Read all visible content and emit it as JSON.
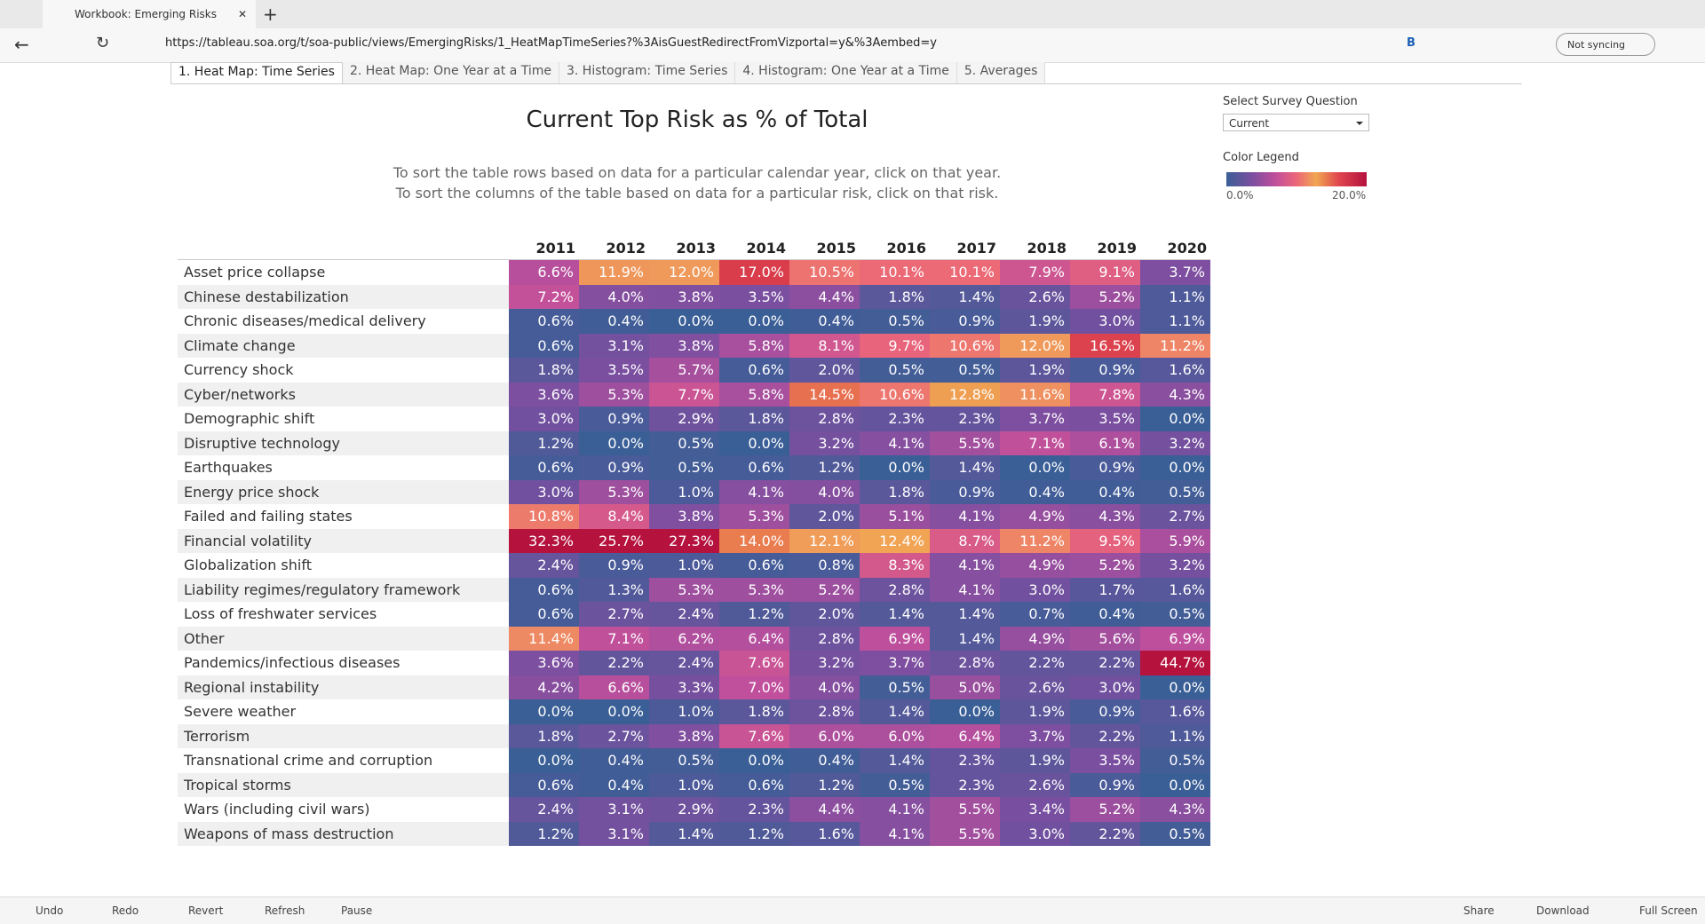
{
  "browser": {
    "tab_title": "Workbook: Emerging Risks",
    "url": "https://tableau.soa.org/t/soa-public/views/EmergingRisks/1_HeatMapTimeSeries?%3AisGuestRedirectFromVizportal=y&%3Aembed=y",
    "sync": "Not syncing",
    "profile_letter": "B"
  },
  "tabs": [
    "1. Heat Map: Time Series",
    "2. Heat Map: One Year at a Time",
    "3. Histogram: Time Series",
    "4. Histogram: One Year at a Time",
    "5. Averages"
  ],
  "dashboard": {
    "title": "Current Top Risk as % of Total",
    "instructions": [
      "To sort the table rows based on data for a particular calendar year, click on that year.",
      "To sort the columns of the table based on data for a particular risk, click on that risk."
    ]
  },
  "filter": {
    "label": "Select Survey Question",
    "value": "Current"
  },
  "legend": {
    "title": "Color Legend",
    "min": "0.0%",
    "max": "20.0%"
  },
  "table": {
    "columns": [
      "2011",
      "2012",
      "2013",
      "2014",
      "2015",
      "2016",
      "2017",
      "2018",
      "2019",
      "2020"
    ],
    "rows": [
      {
        "label": "Asset price collapse",
        "cells": [
          "6.6%",
          "11.9%",
          "12.0%",
          "17.0%",
          "10.5%",
          "10.1%",
          "10.1%",
          "7.9%",
          "9.1%",
          "3.7%"
        ]
      },
      {
        "label": "Chinese destabilization",
        "cells": [
          "7.2%",
          "4.0%",
          "3.8%",
          "3.5%",
          "4.4%",
          "1.8%",
          "1.4%",
          "2.6%",
          "5.2%",
          "1.1%"
        ]
      },
      {
        "label": "Chronic diseases/medical delivery",
        "cells": [
          "0.6%",
          "0.4%",
          "0.0%",
          "0.0%",
          "0.4%",
          "0.5%",
          "0.9%",
          "1.9%",
          "3.0%",
          "1.1%"
        ]
      },
      {
        "label": "Climate change",
        "cells": [
          "0.6%",
          "3.1%",
          "3.8%",
          "5.8%",
          "8.1%",
          "9.7%",
          "10.6%",
          "12.0%",
          "16.5%",
          "11.2%"
        ]
      },
      {
        "label": "Currency shock",
        "cells": [
          "1.8%",
          "3.5%",
          "5.7%",
          "0.6%",
          "2.0%",
          "0.5%",
          "0.5%",
          "1.9%",
          "0.9%",
          "1.6%"
        ]
      },
      {
        "label": "Cyber/networks",
        "cells": [
          "3.6%",
          "5.3%",
          "7.7%",
          "5.8%",
          "14.5%",
          "10.6%",
          "12.8%",
          "11.6%",
          "7.8%",
          "4.3%"
        ]
      },
      {
        "label": "Demographic shift",
        "cells": [
          "3.0%",
          "0.9%",
          "2.9%",
          "1.8%",
          "2.8%",
          "2.3%",
          "2.3%",
          "3.7%",
          "3.5%",
          "0.0%"
        ]
      },
      {
        "label": "Disruptive technology",
        "cells": [
          "1.2%",
          "0.0%",
          "0.5%",
          "0.0%",
          "3.2%",
          "4.1%",
          "5.5%",
          "7.1%",
          "6.1%",
          "3.2%"
        ]
      },
      {
        "label": "Earthquakes",
        "cells": [
          "0.6%",
          "0.9%",
          "0.5%",
          "0.6%",
          "1.2%",
          "0.0%",
          "1.4%",
          "0.0%",
          "0.9%",
          "0.0%"
        ]
      },
      {
        "label": "Energy price shock",
        "cells": [
          "3.0%",
          "5.3%",
          "1.0%",
          "4.1%",
          "4.0%",
          "1.8%",
          "0.9%",
          "0.4%",
          "0.4%",
          "0.5%"
        ]
      },
      {
        "label": "Failed and failing states",
        "cells": [
          "10.8%",
          "8.4%",
          "3.8%",
          "5.3%",
          "2.0%",
          "5.1%",
          "4.1%",
          "4.9%",
          "4.3%",
          "2.7%"
        ]
      },
      {
        "label": "Financial volatility",
        "cells": [
          "32.3%",
          "25.7%",
          "27.3%",
          "14.0%",
          "12.1%",
          "12.4%",
          "8.7%",
          "11.2%",
          "9.5%",
          "5.9%"
        ]
      },
      {
        "label": "Globalization shift",
        "cells": [
          "2.4%",
          "0.9%",
          "1.0%",
          "0.6%",
          "0.8%",
          "8.3%",
          "4.1%",
          "4.9%",
          "5.2%",
          "3.2%"
        ]
      },
      {
        "label": "Liability regimes/regulatory framework",
        "cells": [
          "0.6%",
          "1.3%",
          "5.3%",
          "5.3%",
          "5.2%",
          "2.8%",
          "4.1%",
          "3.0%",
          "1.7%",
          "1.6%"
        ]
      },
      {
        "label": "Loss of freshwater services",
        "cells": [
          "0.6%",
          "2.7%",
          "2.4%",
          "1.2%",
          "2.0%",
          "1.4%",
          "1.4%",
          "0.7%",
          "0.4%",
          "0.5%"
        ]
      },
      {
        "label": "Other",
        "cells": [
          "11.4%",
          "7.1%",
          "6.2%",
          "6.4%",
          "2.8%",
          "6.9%",
          "1.4%",
          "4.9%",
          "5.6%",
          "6.9%"
        ]
      },
      {
        "label": "Pandemics/infectious diseases",
        "cells": [
          "3.6%",
          "2.2%",
          "2.4%",
          "7.6%",
          "3.2%",
          "3.7%",
          "2.8%",
          "2.2%",
          "2.2%",
          "44.7%"
        ]
      },
      {
        "label": "Regional instability",
        "cells": [
          "4.2%",
          "6.6%",
          "3.3%",
          "7.0%",
          "4.0%",
          "0.5%",
          "5.0%",
          "2.6%",
          "3.0%",
          "0.0%"
        ]
      },
      {
        "label": "Severe weather",
        "cells": [
          "0.0%",
          "0.0%",
          "1.0%",
          "1.8%",
          "2.8%",
          "1.4%",
          "0.0%",
          "1.9%",
          "0.9%",
          "1.6%"
        ]
      },
      {
        "label": "Terrorism",
        "cells": [
          "1.8%",
          "2.7%",
          "3.8%",
          "7.6%",
          "6.0%",
          "6.0%",
          "6.4%",
          "3.7%",
          "2.2%",
          "1.1%"
        ]
      },
      {
        "label": "Transnational crime and corruption",
        "cells": [
          "0.0%",
          "0.4%",
          "0.5%",
          "0.0%",
          "0.4%",
          "1.4%",
          "2.3%",
          "1.9%",
          "3.5%",
          "0.5%"
        ]
      },
      {
        "label": "Tropical storms",
        "cells": [
          "0.6%",
          "0.4%",
          "1.0%",
          "0.6%",
          "1.2%",
          "0.5%",
          "2.3%",
          "2.6%",
          "0.9%",
          "0.0%"
        ]
      },
      {
        "label": "Wars (including civil wars)",
        "cells": [
          "2.4%",
          "3.1%",
          "2.9%",
          "2.3%",
          "4.4%",
          "4.1%",
          "5.5%",
          "3.4%",
          "5.2%",
          "4.3%"
        ]
      },
      {
        "label": "Weapons of mass destruction",
        "cells": [
          "1.2%",
          "3.1%",
          "1.4%",
          "1.2%",
          "1.6%",
          "4.1%",
          "5.5%",
          "3.0%",
          "2.2%",
          "0.5%"
        ]
      }
    ]
  },
  "toolbar": {
    "left": [
      "Undo",
      "Redo",
      "Revert",
      "Refresh",
      "Pause"
    ],
    "right": [
      "Share",
      "Download",
      "Full Screen"
    ]
  }
}
